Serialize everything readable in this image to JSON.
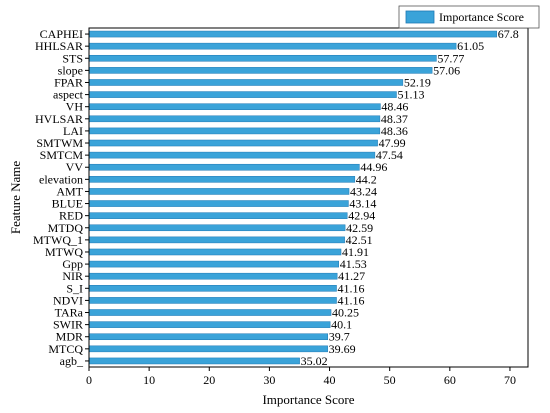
{
  "chart_data": {
    "type": "bar",
    "orientation": "horizontal",
    "xlabel": "Importance Score",
    "ylabel": "Feature Name",
    "xlim": [
      0,
      73
    ],
    "xticks": [
      0,
      10,
      20,
      30,
      40,
      50,
      60,
      70
    ],
    "grid": false,
    "legend": {
      "position": "top-right",
      "entries": [
        "Importance Score"
      ]
    },
    "bar_color": "#3aa3d9",
    "bar_edge_color": "#1f78b4",
    "categories": [
      "CAPHEI",
      "HHLSAR",
      "STS",
      "slope",
      "FPAR",
      "aspect",
      "VH",
      "HVLSAR",
      "LAI",
      "SMTWM",
      "SMTCM",
      "VV",
      "elevation",
      "AMT",
      "BLUE",
      "RED",
      "MTDQ",
      "MTWQ_1",
      "MTWQ",
      "Gpp",
      "NIR",
      "S_I",
      "NDVI",
      "TARa",
      "SWIR",
      "MDR",
      "MTCQ",
      "agb_"
    ],
    "values": [
      67.8,
      61.05,
      57.77,
      57.06,
      52.19,
      51.13,
      48.46,
      48.37,
      48.36,
      47.99,
      47.54,
      44.96,
      44.2,
      43.24,
      43.14,
      42.94,
      42.59,
      42.51,
      41.91,
      41.53,
      41.27,
      41.16,
      41.16,
      40.25,
      40.1,
      39.7,
      39.69,
      35.02
    ],
    "value_labels": [
      "67.8",
      "61.05",
      "57.77",
      "57.06",
      "52.19",
      "51.13",
      "48.46",
      "48.37",
      "48.36",
      "47.99",
      "47.54",
      "44.96",
      "44.2",
      "43.24",
      "43.14",
      "42.94",
      "42.59",
      "42.51",
      "41.91",
      "41.53",
      "41.27",
      "41.16",
      "41.16",
      "40.25",
      "40.1",
      "39.7",
      "39.69",
      "35.02"
    ]
  }
}
